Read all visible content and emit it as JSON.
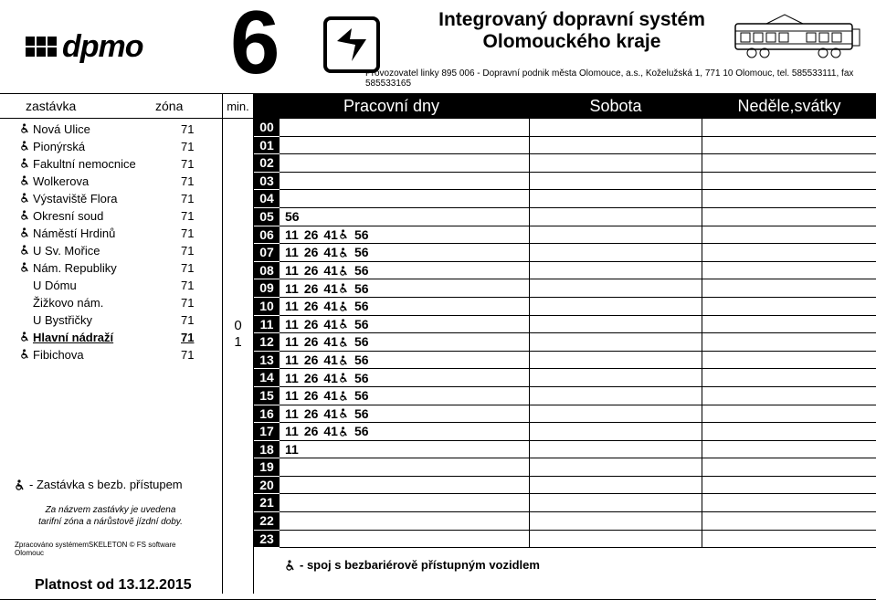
{
  "header": {
    "logo_text": "dpmo",
    "line_number": "6",
    "ids_line1": "Integrovaný dopravní systém",
    "ids_line2": "Olomouckého kraje",
    "operator": "Provozovatel linky 895 006 - Dopravní podnik města Olomouce, a.s., Koželužská 1, 771 10 Olomouc, tel. 585533111, fax 585533165"
  },
  "col_headers": {
    "stop": "zastávka",
    "zone": "zóna",
    "min": "min.",
    "work": "Pracovní dny",
    "sat": "Sobota",
    "sun": "Neděle,svátky"
  },
  "stops": [
    {
      "acc": true,
      "name": "Nová Ulice",
      "zone": "71"
    },
    {
      "acc": true,
      "name": "Pionýrská",
      "zone": "71"
    },
    {
      "acc": true,
      "name": "Fakultní nemocnice",
      "zone": "71"
    },
    {
      "acc": true,
      "name": "Wolkerova",
      "zone": "71"
    },
    {
      "acc": true,
      "name": "Výstaviště Flora",
      "zone": "71"
    },
    {
      "acc": true,
      "name": "Okresní soud",
      "zone": "71"
    },
    {
      "acc": true,
      "name": "Náměstí Hrdinů",
      "zone": "71"
    },
    {
      "acc": true,
      "name": "U Sv. Mořice",
      "zone": "71"
    },
    {
      "acc": true,
      "name": "Nám. Republiky",
      "zone": "71"
    },
    {
      "acc": false,
      "name": "U Dómu",
      "zone": "71"
    },
    {
      "acc": false,
      "name": "Žižkovo nám.",
      "zone": "71"
    },
    {
      "acc": false,
      "name": "U Bystřičky",
      "zone": "71"
    },
    {
      "acc": true,
      "name": "Hlavní nádraží",
      "zone": "71",
      "current": true
    },
    {
      "acc": true,
      "name": "Fibichova",
      "zone": "71"
    }
  ],
  "min_offsets": [
    "0",
    "1"
  ],
  "hours": [
    "00",
    "01",
    "02",
    "03",
    "04",
    "05",
    "06",
    "07",
    "08",
    "09",
    "10",
    "11",
    "12",
    "13",
    "14",
    "15",
    "16",
    "17",
    "18",
    "19",
    "20",
    "21",
    "22",
    "23"
  ],
  "departures_work": {
    "05": [
      {
        "m": "56",
        "a": false
      }
    ],
    "06": [
      {
        "m": "11",
        "a": false
      },
      {
        "m": "26",
        "a": false
      },
      {
        "m": "41",
        "a": true
      },
      {
        "m": "56",
        "a": false
      }
    ],
    "07": [
      {
        "m": "11",
        "a": false
      },
      {
        "m": "26",
        "a": false
      },
      {
        "m": "41",
        "a": true
      },
      {
        "m": "56",
        "a": false
      }
    ],
    "08": [
      {
        "m": "11",
        "a": false
      },
      {
        "m": "26",
        "a": false
      },
      {
        "m": "41",
        "a": true
      },
      {
        "m": "56",
        "a": false
      }
    ],
    "09": [
      {
        "m": "11",
        "a": false
      },
      {
        "m": "26",
        "a": false
      },
      {
        "m": "41",
        "a": true
      },
      {
        "m": "56",
        "a": false
      }
    ],
    "10": [
      {
        "m": "11",
        "a": false
      },
      {
        "m": "26",
        "a": false
      },
      {
        "m": "41",
        "a": true
      },
      {
        "m": "56",
        "a": false
      }
    ],
    "11": [
      {
        "m": "11",
        "a": false
      },
      {
        "m": "26",
        "a": false
      },
      {
        "m": "41",
        "a": true
      },
      {
        "m": "56",
        "a": false
      }
    ],
    "12": [
      {
        "m": "11",
        "a": false
      },
      {
        "m": "26",
        "a": false
      },
      {
        "m": "41",
        "a": true
      },
      {
        "m": "56",
        "a": false
      }
    ],
    "13": [
      {
        "m": "11",
        "a": false
      },
      {
        "m": "26",
        "a": false
      },
      {
        "m": "41",
        "a": true
      },
      {
        "m": "56",
        "a": false
      }
    ],
    "14": [
      {
        "m": "11",
        "a": false
      },
      {
        "m": "26",
        "a": false
      },
      {
        "m": "41",
        "a": true
      },
      {
        "m": "56",
        "a": false
      }
    ],
    "15": [
      {
        "m": "11",
        "a": false
      },
      {
        "m": "26",
        "a": false
      },
      {
        "m": "41",
        "a": true
      },
      {
        "m": "56",
        "a": false
      }
    ],
    "16": [
      {
        "m": "11",
        "a": false
      },
      {
        "m": "26",
        "a": false
      },
      {
        "m": "41",
        "a": true
      },
      {
        "m": "56",
        "a": false
      }
    ],
    "17": [
      {
        "m": "11",
        "a": false
      },
      {
        "m": "26",
        "a": false
      },
      {
        "m": "41",
        "a": true
      },
      {
        "m": "56",
        "a": false
      }
    ],
    "18": [
      {
        "m": "11",
        "a": false
      }
    ]
  },
  "left_footer": {
    "fn1": "- Zastávka s bezb. přístupem",
    "fn2a": "Za názvem zastávky je uvedena",
    "fn2b": "tarifní zóna a nárůstově jízdní doby.",
    "fn3": "Zpracováno systémemSKELETON © FS software Olomouc"
  },
  "validity": "Platnost od 13.12.2015",
  "bottom_note": "- spoj s bezbariérově přístupným vozidlem"
}
